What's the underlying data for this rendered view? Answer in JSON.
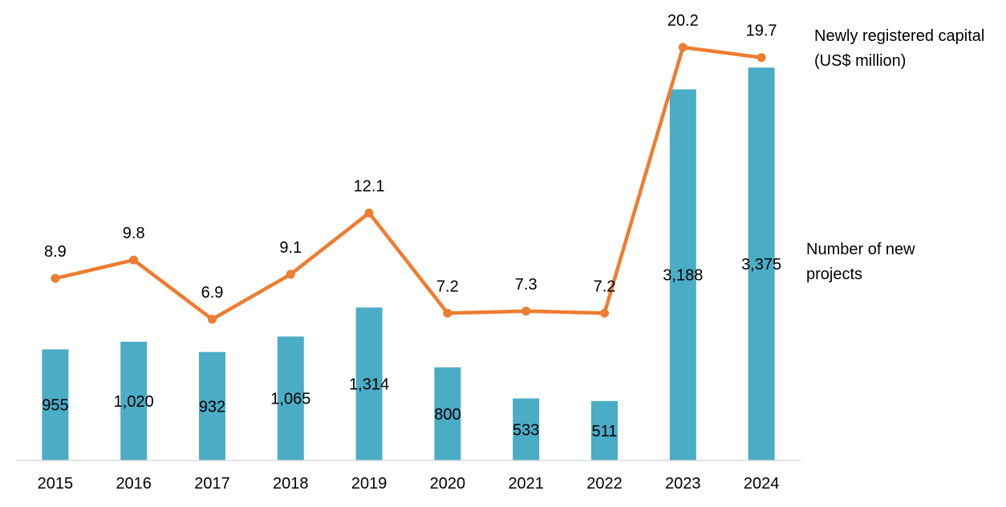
{
  "chart_data": {
    "type": "bar",
    "categories": [
      "2015",
      "2016",
      "2017",
      "2018",
      "2019",
      "2020",
      "2021",
      "2022",
      "2023",
      "2024"
    ],
    "series": [
      {
        "name": "Number of new projects",
        "type": "bar",
        "values": [
          955,
          1020,
          932,
          1065,
          1314,
          800,
          533,
          511,
          3188,
          3375
        ],
        "labels": [
          "955",
          "1,020",
          "932",
          "1,065",
          "1,314",
          "800",
          "533",
          "511",
          "3,188",
          "3,375"
        ],
        "color": "#4BACC6"
      },
      {
        "name": "Newly registered capital (US$ million)",
        "type": "line",
        "values": [
          8.9,
          9.8,
          6.9,
          9.1,
          12.1,
          7.2,
          7.3,
          7.2,
          20.2,
          19.7
        ],
        "labels": [
          "8.9",
          "9.8",
          "6.9",
          "9.1",
          "12.1",
          "7.2",
          "7.3",
          "7.2",
          "20.2",
          "19.7"
        ],
        "color": "#ED7D31"
      }
    ],
    "legend": {
      "line_lines": [
        "Newly registered capital",
        "(US$ million)"
      ],
      "bar_lines": [
        "Number of new",
        "projects"
      ],
      "placement": "right"
    },
    "axis_color": "#D9D9D9",
    "grid": false
  }
}
